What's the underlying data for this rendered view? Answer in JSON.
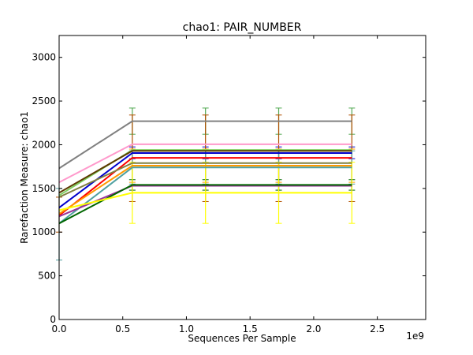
{
  "chart_data": {
    "type": "line",
    "title": "chao1: PAIR_NUMBER",
    "xlabel": "Sequences Per Sample",
    "ylabel": "Rarefaction Measure: chao1",
    "x_offset_label": "1e9",
    "xlim": [
      0,
      2.88
    ],
    "ylim": [
      0,
      3250
    ],
    "x_ticks": [
      0,
      0.5,
      1.0,
      1.5,
      2.0,
      2.5
    ],
    "x_tick_labels": [
      "0.0",
      "0.5",
      "1.0",
      "1.5",
      "2.0",
      "2.5"
    ],
    "y_ticks": [
      0,
      500,
      1000,
      1500,
      2000,
      2500,
      3000
    ],
    "y_tick_labels": [
      "0",
      "500",
      "1000",
      "1500",
      "2000",
      "2500",
      "3000"
    ],
    "grid": false,
    "legend": "none",
    "x": [
      0,
      0.575,
      1.15,
      1.725,
      2.3
    ],
    "series": [
      {
        "color": "#808080",
        "values": [
          1730,
          2270,
          2270,
          2270,
          2270
        ],
        "err_low": [
          0,
          2120,
          2120,
          2120,
          2120
        ],
        "err_high": [
          0,
          2420,
          2420,
          2420,
          2420
        ],
        "err_color": "#55aa55"
      },
      {
        "color": "#ff99cc",
        "values": [
          1570,
          2005,
          2005,
          2005,
          2005
        ],
        "err_low": [
          0,
          0,
          0,
          0,
          0
        ],
        "err_high": [
          0,
          0,
          0,
          0,
          0
        ],
        "err_color": "#ff99cc"
      },
      {
        "color": "#80d060",
        "values": [
          1420,
          1940,
          1940,
          1940,
          1940
        ],
        "err_low": [
          0,
          0,
          0,
          0,
          0
        ],
        "err_high": [
          0,
          0,
          0,
          0,
          0
        ],
        "err_color": "#80d060"
      },
      {
        "color": "#0000cc",
        "values": [
          1280,
          1905,
          1905,
          1905,
          1905
        ],
        "err_low": [
          0,
          1840,
          1840,
          1840,
          1840
        ],
        "err_high": [
          0,
          1975,
          1975,
          1975,
          1975
        ],
        "err_color": "#0000cc"
      },
      {
        "color": "#5c3a00",
        "values": [
          1450,
          1930,
          1930,
          1930,
          1930
        ],
        "err_low": [
          0,
          0,
          0,
          0,
          0
        ],
        "err_high": [
          0,
          0,
          0,
          0,
          0
        ],
        "err_color": "#5c3a00"
      },
      {
        "color": "#ff0000",
        "values": [
          1190,
          1850,
          1850,
          1850,
          1850
        ],
        "err_low": [
          1000,
          1350,
          1350,
          1350,
          1350
        ],
        "err_high": [
          1400,
          2340,
          2340,
          2340,
          2340
        ],
        "err_color": "#b05000"
      },
      {
        "color": "#808040",
        "values": [
          1400,
          1790,
          1790,
          1790,
          1790
        ],
        "err_low": [
          0,
          0,
          0,
          0,
          0
        ],
        "err_high": [
          0,
          0,
          0,
          0,
          0
        ],
        "err_color": "#808040"
      },
      {
        "color": "#ff9900",
        "values": [
          1210,
          1760,
          1760,
          1760,
          1760
        ],
        "err_low": [
          0,
          1570,
          1570,
          1570,
          1570
        ],
        "err_high": [
          0,
          1950,
          1950,
          1950,
          1950
        ],
        "err_color": "#ff9900"
      },
      {
        "color": "#50a0a0",
        "values": [
          1100,
          1740,
          1740,
          1740,
          1740
        ],
        "err_low": [
          680,
          1550,
          1550,
          1550,
          1550
        ],
        "err_high": [
          1500,
          1930,
          1930,
          1930,
          1930
        ],
        "err_color": "#50a0a0"
      },
      {
        "color": "#993399",
        "values": [
          1180,
          1530,
          1530,
          1530,
          1530
        ],
        "err_low": [
          0,
          0,
          0,
          0,
          0
        ],
        "err_high": [
          0,
          0,
          0,
          0,
          0
        ],
        "err_color": "#993399"
      },
      {
        "color": "#006600",
        "values": [
          1100,
          1540,
          1540,
          1540,
          1540
        ],
        "err_low": [
          0,
          1480,
          1480,
          1480,
          1480
        ],
        "err_high": [
          0,
          1600,
          1600,
          1600,
          1600
        ],
        "err_color": "#006600"
      },
      {
        "color": "#ffff00",
        "values": [
          1250,
          1450,
          1450,
          1450,
          1450
        ],
        "err_low": [
          0,
          1100,
          1100,
          1100,
          1100
        ],
        "err_high": [
          0,
          1800,
          1800,
          1800,
          1800
        ],
        "err_color": "#ffff00"
      }
    ]
  }
}
